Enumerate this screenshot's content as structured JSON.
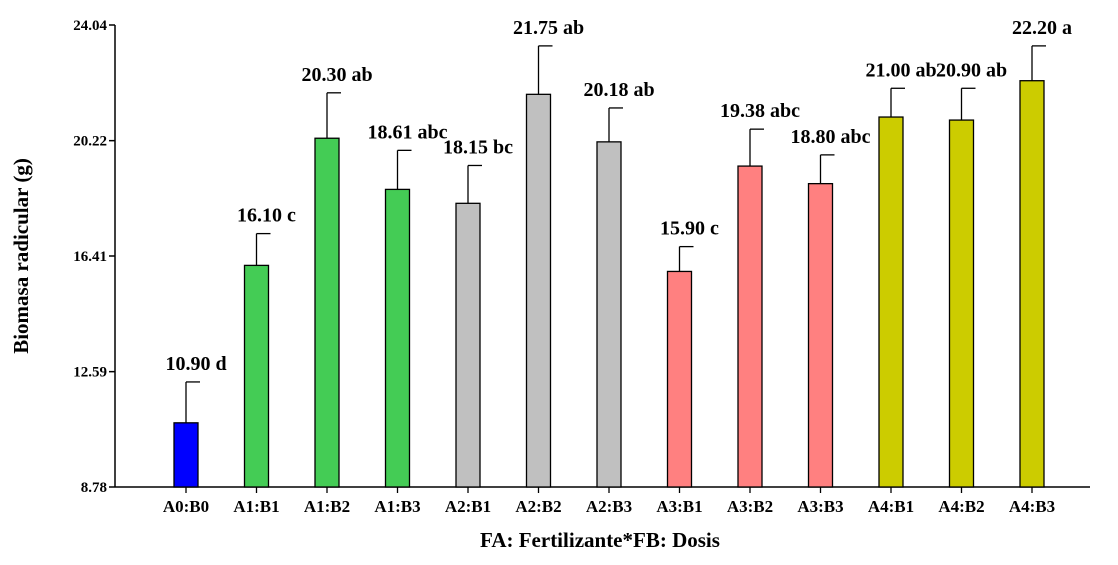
{
  "chart_data": {
    "type": "bar",
    "xlabel": "FA: Fertilizante*FB: Dosis",
    "ylabel": "Biomasa radicular (g)",
    "ylim": [
      8.78,
      24.04
    ],
    "yticks": [
      "8.78",
      "12.59",
      "16.41",
      "20.22",
      "24.04"
    ],
    "ytick_values": [
      8.78,
      12.59,
      16.41,
      20.22,
      24.04
    ],
    "categories": [
      "A0:B0",
      "A1:B1",
      "A1:B2",
      "A1:B3",
      "A2:B1",
      "A2:B2",
      "A2:B3",
      "A3:B1",
      "A3:B2",
      "A3:B3",
      "A4:B1",
      "A4:B2",
      "A4:B3"
    ],
    "values": [
      10.9,
      16.1,
      20.3,
      18.61,
      18.15,
      21.75,
      20.18,
      15.9,
      19.38,
      18.8,
      21.0,
      20.9,
      22.2
    ],
    "error_upper": [
      12.25,
      17.15,
      21.8,
      19.9,
      19.4,
      23.35,
      21.3,
      16.72,
      20.6,
      19.75,
      21.95,
      21.95,
      23.35
    ],
    "data_labels": [
      "10.90  d",
      "16.10  c",
      "20.30  ab",
      "18.61  abc",
      "18.15  bc",
      "21.75  ab",
      "20.18  ab",
      "15.90  c",
      "19.38  abc",
      "18.80  abc",
      "21.00  ab",
      "20.90  ab",
      "22.20  a"
    ],
    "colors": [
      "#0000ff",
      "#44cc55",
      "#44cc55",
      "#44cc55",
      "#c0c0c0",
      "#c0c0c0",
      "#c0c0c0",
      "#ff8080",
      "#ff8080",
      "#ff8080",
      "#cccc00",
      "#cccc00",
      "#cccc00"
    ],
    "grid": false,
    "legend": "none"
  }
}
